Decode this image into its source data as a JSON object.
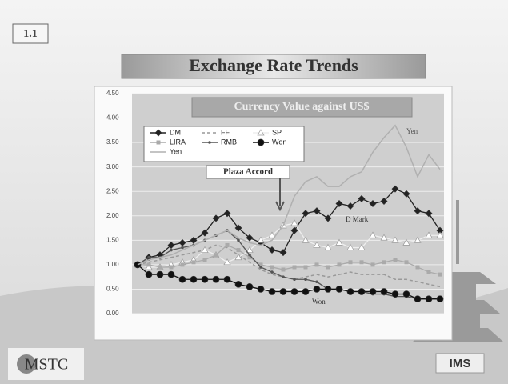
{
  "slide_number": "1.1",
  "title": "Exchange Rate Trends",
  "logos": {
    "left": "MSTC",
    "right": "IMS"
  },
  "chart_data": {
    "type": "line",
    "title": "Currency Value against US$",
    "categories": [
      null,
      null,
      null,
      null,
      null,
      null,
      null,
      null,
      null,
      null,
      null,
      null,
      null,
      null,
      null,
      null,
      null,
      null,
      null,
      null,
      null,
      null,
      null,
      null,
      null,
      null,
      null,
      null
    ],
    "ylim": [
      0,
      4.5
    ],
    "yticks": [
      {
        "value": 0,
        "label": "0.00"
      },
      {
        "value": 0.5,
        "label": "0.50"
      },
      {
        "value": 1,
        "label": "1.00"
      },
      {
        "value": 1.5,
        "label": "1.50"
      },
      {
        "value": 2,
        "label": "2.00"
      },
      {
        "value": 2.5,
        "label": "2.50"
      },
      {
        "value": 3,
        "label": "3.00"
      },
      {
        "value": 3.5,
        "label": "3.50"
      },
      {
        "value": 4,
        "label": "4.00"
      },
      {
        "value": 4.5,
        "label": "4.50"
      }
    ],
    "grid": true,
    "series": [
      {
        "name": "DM",
        "color": "#222222",
        "marker": "diamond",
        "values": [
          1.0,
          1.15,
          1.2,
          1.4,
          1.45,
          1.5,
          1.65,
          1.95,
          2.05,
          1.75,
          1.55,
          1.45,
          1.3,
          1.25,
          1.7,
          2.05,
          2.1,
          1.95,
          2.25,
          2.2,
          2.35,
          2.25,
          2.3,
          2.55,
          2.45,
          2.1,
          2.05,
          1.7
        ]
      },
      {
        "name": "FF",
        "color": "#999999",
        "marker": "none",
        "dash": true,
        "values": [
          1.0,
          1.05,
          1.1,
          1.15,
          1.2,
          1.25,
          1.3,
          1.4,
          1.35,
          1.2,
          1.05,
          0.9,
          0.8,
          0.75,
          0.7,
          0.75,
          0.8,
          0.75,
          0.8,
          0.85,
          0.8,
          0.8,
          0.8,
          0.7,
          0.7,
          0.65,
          0.6,
          0.55
        ]
      },
      {
        "name": "SP",
        "color": "#ffffff",
        "marker": "triangle",
        "values": [
          1.0,
          0.95,
          0.95,
          1.0,
          1.05,
          1.1,
          1.3,
          1.2,
          1.05,
          1.15,
          1.3,
          1.5,
          1.6,
          1.8,
          1.85,
          1.5,
          1.4,
          1.35,
          1.45,
          1.35,
          1.35,
          1.6,
          1.55,
          1.5,
          1.45,
          1.5,
          1.6,
          1.6
        ]
      },
      {
        "name": "LIRA",
        "color": "#aaaaaa",
        "marker": "square",
        "values": [
          1.0,
          1.0,
          0.95,
          0.95,
          1.0,
          1.05,
          1.1,
          1.2,
          1.4,
          1.3,
          1.15,
          1.0,
          0.95,
          0.9,
          0.95,
          0.95,
          1.0,
          0.95,
          1.0,
          1.05,
          1.05,
          1.0,
          1.05,
          1.1,
          1.05,
          0.95,
          0.85,
          0.8
        ]
      },
      {
        "name": "RMB",
        "color": "#555555",
        "marker": "small",
        "values": [
          1.0,
          1.15,
          1.15,
          1.3,
          1.35,
          1.4,
          1.5,
          1.6,
          1.7,
          1.5,
          1.2,
          0.95,
          0.85,
          0.75,
          0.7,
          0.7,
          0.65,
          0.5,
          0.5,
          0.45,
          0.45,
          0.4,
          0.4,
          0.35,
          0.35,
          0.3,
          0.3,
          0.3
        ]
      },
      {
        "name": "Won",
        "color": "#111111",
        "marker": "circle",
        "values": [
          1.0,
          0.8,
          0.8,
          0.8,
          0.7,
          0.7,
          0.7,
          0.7,
          0.7,
          0.6,
          0.55,
          0.5,
          0.45,
          0.45,
          0.45,
          0.45,
          0.5,
          0.5,
          0.5,
          0.45,
          0.45,
          0.45,
          0.45,
          0.4,
          0.4,
          0.3,
          0.3,
          0.3
        ]
      },
      {
        "name": "Yen",
        "color": "#b0b0b0",
        "marker": "none",
        "values": [
          1.0,
          1.1,
          1.15,
          1.2,
          1.3,
          1.4,
          1.5,
          1.6,
          1.7,
          1.55,
          1.45,
          1.4,
          1.5,
          1.8,
          2.4,
          2.7,
          2.8,
          2.6,
          2.6,
          2.8,
          2.9,
          3.3,
          3.6,
          3.85,
          3.4,
          2.8,
          3.25,
          2.95
        ]
      }
    ],
    "annotations": [
      "Plaza Accord",
      "Yen",
      "D Mark",
      "Won"
    ]
  }
}
